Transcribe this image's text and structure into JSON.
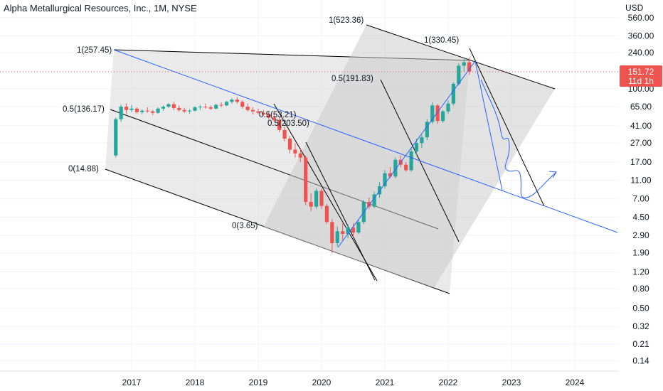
{
  "chart_data": {
    "type": "candlestick",
    "title": "Alpha Metallurgical Resources, Inc., 1M, NYSE",
    "currency": "USD",
    "y_scale": "log",
    "y_ticks": [
      "560.00",
      "360.00",
      "240.00",
      "100.00",
      "65.00",
      "41.00",
      "27.00",
      "17.00",
      "11.00",
      "7.00",
      "4.50",
      "2.90",
      "1.90",
      "1.20",
      "0.80",
      "0.50",
      "0.32",
      "0.21",
      "0.14"
    ],
    "x_ticks": [
      "2017",
      "2018",
      "2019",
      "2020",
      "2021",
      "2022",
      "2023",
      "2024"
    ],
    "last_price": "151.72",
    "countdown": "11d 1h",
    "colors": {
      "up": "#26a69a",
      "down": "#ef5350",
      "trend": "#2962ff",
      "price_line": "#ef5350",
      "fill": "#d6d6d6",
      "line": "#000000"
    },
    "series": [
      {
        "t": "2016-10",
        "o": 20,
        "h": 50,
        "l": 19,
        "c": 48
      },
      {
        "t": "2016-11",
        "o": 48,
        "h": 68,
        "l": 45,
        "c": 65
      },
      {
        "t": "2016-12",
        "o": 65,
        "h": 70,
        "l": 55,
        "c": 60
      },
      {
        "t": "2017-01",
        "o": 60,
        "h": 68,
        "l": 57,
        "c": 62
      },
      {
        "t": "2017-02",
        "o": 62,
        "h": 64,
        "l": 55,
        "c": 57
      },
      {
        "t": "2017-03",
        "o": 57,
        "h": 61,
        "l": 54,
        "c": 59
      },
      {
        "t": "2017-04",
        "o": 59,
        "h": 64,
        "l": 56,
        "c": 58
      },
      {
        "t": "2017-05",
        "o": 58,
        "h": 60,
        "l": 53,
        "c": 56
      },
      {
        "t": "2017-06",
        "o": 56,
        "h": 64,
        "l": 55,
        "c": 62
      },
      {
        "t": "2017-07",
        "o": 62,
        "h": 67,
        "l": 59,
        "c": 65
      },
      {
        "t": "2017-08",
        "o": 65,
        "h": 71,
        "l": 63,
        "c": 69
      },
      {
        "t": "2017-09",
        "o": 69,
        "h": 73,
        "l": 60,
        "c": 63
      },
      {
        "t": "2017-10",
        "o": 63,
        "h": 67,
        "l": 58,
        "c": 60
      },
      {
        "t": "2017-11",
        "o": 60,
        "h": 63,
        "l": 56,
        "c": 58
      },
      {
        "t": "2017-12",
        "o": 58,
        "h": 61,
        "l": 55,
        "c": 59
      },
      {
        "t": "2018-01",
        "o": 59,
        "h": 66,
        "l": 58,
        "c": 64
      },
      {
        "t": "2018-02",
        "o": 64,
        "h": 68,
        "l": 60,
        "c": 65
      },
      {
        "t": "2018-03",
        "o": 65,
        "h": 70,
        "l": 62,
        "c": 64
      },
      {
        "t": "2018-04",
        "o": 64,
        "h": 67,
        "l": 60,
        "c": 62
      },
      {
        "t": "2018-05",
        "o": 62,
        "h": 70,
        "l": 61,
        "c": 68
      },
      {
        "t": "2018-06",
        "o": 68,
        "h": 72,
        "l": 64,
        "c": 67
      },
      {
        "t": "2018-07",
        "o": 67,
        "h": 75,
        "l": 66,
        "c": 73
      },
      {
        "t": "2018-08",
        "o": 73,
        "h": 80,
        "l": 70,
        "c": 77
      },
      {
        "t": "2018-09",
        "o": 77,
        "h": 82,
        "l": 70,
        "c": 73
      },
      {
        "t": "2018-10",
        "o": 73,
        "h": 76,
        "l": 62,
        "c": 65
      },
      {
        "t": "2018-11",
        "o": 65,
        "h": 70,
        "l": 58,
        "c": 60
      },
      {
        "t": "2018-12",
        "o": 60,
        "h": 64,
        "l": 54,
        "c": 58
      },
      {
        "t": "2019-01",
        "o": 58,
        "h": 62,
        "l": 54,
        "c": 56
      },
      {
        "t": "2019-02",
        "o": 56,
        "h": 60,
        "l": 52,
        "c": 54
      },
      {
        "t": "2019-03",
        "o": 54,
        "h": 57,
        "l": 48,
        "c": 50
      },
      {
        "t": "2019-04",
        "o": 50,
        "h": 55,
        "l": 45,
        "c": 47
      },
      {
        "t": "2019-05",
        "o": 47,
        "h": 51,
        "l": 35,
        "c": 37
      },
      {
        "t": "2019-06",
        "o": 37,
        "h": 40,
        "l": 28,
        "c": 30
      },
      {
        "t": "2019-07",
        "o": 30,
        "h": 32,
        "l": 21,
        "c": 23
      },
      {
        "t": "2019-08",
        "o": 23,
        "h": 27,
        "l": 19,
        "c": 21
      },
      {
        "t": "2019-09",
        "o": 21,
        "h": 24,
        "l": 17,
        "c": 19
      },
      {
        "t": "2019-10",
        "o": 19,
        "h": 20,
        "l": 6,
        "c": 6.5
      },
      {
        "t": "2019-11",
        "o": 6.5,
        "h": 8,
        "l": 5.2,
        "c": 5.8
      },
      {
        "t": "2019-12",
        "o": 5.8,
        "h": 9,
        "l": 5.5,
        "c": 8.5
      },
      {
        "t": "2020-01",
        "o": 8.5,
        "h": 9,
        "l": 5.5,
        "c": 5.9
      },
      {
        "t": "2020-02",
        "o": 5.9,
        "h": 6.2,
        "l": 3.8,
        "c": 4.0
      },
      {
        "t": "2020-03",
        "o": 4.0,
        "h": 4.3,
        "l": 1.9,
        "c": 2.4
      },
      {
        "t": "2020-04",
        "o": 2.4,
        "h": 3.6,
        "l": 2.2,
        "c": 3.2
      },
      {
        "t": "2020-05",
        "o": 3.2,
        "h": 4.0,
        "l": 2.5,
        "c": 3.0
      },
      {
        "t": "2020-06",
        "o": 3.0,
        "h": 3.8,
        "l": 2.7,
        "c": 3.5
      },
      {
        "t": "2020-07",
        "o": 3.5,
        "h": 3.9,
        "l": 2.8,
        "c": 3.1
      },
      {
        "t": "2020-08",
        "o": 3.1,
        "h": 4.3,
        "l": 3.0,
        "c": 4.0
      },
      {
        "t": "2020-09",
        "o": 4.0,
        "h": 6.8,
        "l": 3.8,
        "c": 6.5
      },
      {
        "t": "2020-10",
        "o": 6.5,
        "h": 7.2,
        "l": 5.5,
        "c": 5.8
      },
      {
        "t": "2020-11",
        "o": 5.8,
        "h": 8.3,
        "l": 5.6,
        "c": 7.8
      },
      {
        "t": "2020-12",
        "o": 7.8,
        "h": 10.5,
        "l": 7.2,
        "c": 9.5
      },
      {
        "t": "2021-01",
        "o": 9.5,
        "h": 14,
        "l": 9,
        "c": 13
      },
      {
        "t": "2021-02",
        "o": 13,
        "h": 15,
        "l": 11.5,
        "c": 12
      },
      {
        "t": "2021-03",
        "o": 12,
        "h": 19,
        "l": 11.5,
        "c": 18
      },
      {
        "t": "2021-04",
        "o": 18,
        "h": 20,
        "l": 15,
        "c": 16
      },
      {
        "t": "2021-05",
        "o": 16,
        "h": 17,
        "l": 13.5,
        "c": 14
      },
      {
        "t": "2021-06",
        "o": 14,
        "h": 24,
        "l": 13.5,
        "c": 22
      },
      {
        "t": "2021-07",
        "o": 22,
        "h": 30,
        "l": 20,
        "c": 27
      },
      {
        "t": "2021-08",
        "o": 27,
        "h": 33,
        "l": 24,
        "c": 31
      },
      {
        "t": "2021-09",
        "o": 31,
        "h": 48,
        "l": 29,
        "c": 45
      },
      {
        "t": "2021-10",
        "o": 45,
        "h": 72,
        "l": 43,
        "c": 67
      },
      {
        "t": "2021-11",
        "o": 67,
        "h": 69,
        "l": 43,
        "c": 46
      },
      {
        "t": "2021-12",
        "o": 46,
        "h": 60,
        "l": 44,
        "c": 58
      },
      {
        "t": "2022-01",
        "o": 58,
        "h": 75,
        "l": 55,
        "c": 70
      },
      {
        "t": "2022-02",
        "o": 70,
        "h": 118,
        "l": 67,
        "c": 113
      },
      {
        "t": "2022-03",
        "o": 113,
        "h": 185,
        "l": 108,
        "c": 175
      },
      {
        "t": "2022-04",
        "o": 175,
        "h": 205,
        "l": 150,
        "c": 190
      },
      {
        "t": "2022-05",
        "o": 190,
        "h": 215,
        "l": 140,
        "c": 151.72
      }
    ],
    "fib_labels": [
      "1(257.45)",
      "0.5(136.17)",
      "0(14.88)",
      "1(523.36)",
      "0.5(191.83)",
      "0(3.65)",
      "1(330.45)",
      "0.5(53.21)",
      "0.5(203.50)"
    ]
  }
}
